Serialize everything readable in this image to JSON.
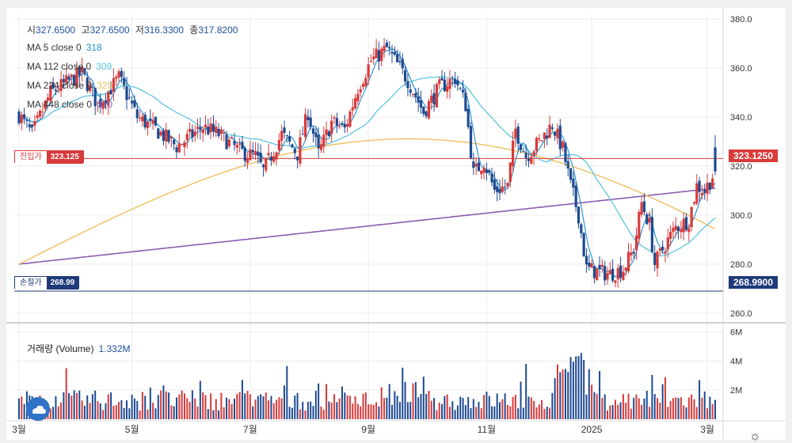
{
  "ohlc": [
    {
      "key": "시",
      "value": "327.6500"
    },
    {
      "key": "고",
      "value": "327.6500"
    },
    {
      "key": "저",
      "value": "316.3300"
    },
    {
      "key": "종",
      "value": "317.8200"
    }
  ],
  "moving_averages": [
    {
      "label": "MA 5 close 0",
      "value": "318",
      "color": "#1f8fd0"
    },
    {
      "label": "MA 112 close 0",
      "value": "309",
      "color": "#5bc6e0"
    },
    {
      "label": "MA 224 close 0",
      "value": "325",
      "color": "#f0c060"
    },
    {
      "label": "MA 448 close 0",
      "value": "310",
      "color": "#8a5cb0"
    }
  ],
  "entry_line": {
    "label": "진입가",
    "value": "323.125",
    "axis_value": "323.1250",
    "price": 323.125,
    "color": "#d93a3a"
  },
  "stop_line": {
    "label": "손절가",
    "value": "268.99",
    "axis_value": "268.9900",
    "price": 268.99,
    "color": "#1e3a78"
  },
  "volume_panel": {
    "title": "거래량 (Volume)",
    "value": "1.332M"
  },
  "colors": {
    "up": "#d93a3a",
    "down": "#1e4a90",
    "grid": "#ececec"
  },
  "icons": {
    "logo": "tradingview-cloud-icon",
    "settings": "gear-icon",
    "collapse": "chevron-up-icon"
  },
  "chart_data": {
    "type": "candlestick",
    "price_axis": {
      "range": [
        258,
        382
      ],
      "ticks": [
        "380.0",
        "360.0",
        "340.0",
        "320.0",
        "300.0",
        "280.0",
        "260.0"
      ]
    },
    "volume_axis": {
      "range": [
        0,
        6.3
      ],
      "unit": "M",
      "ticks": [
        "6M",
        "4M",
        "2M"
      ]
    },
    "x_labels": [
      "3월",
      "5월",
      "7월",
      "9월",
      "11월",
      "2025",
      "3월"
    ],
    "x_label_positions": [
      0,
      43,
      88,
      133,
      178,
      218,
      262
    ],
    "n_bars": 266,
    "price_path": [
      [
        0,
        341
      ],
      [
        5,
        333
      ],
      [
        12,
        350
      ],
      [
        24,
        358
      ],
      [
        30,
        345
      ],
      [
        38,
        356
      ],
      [
        45,
        340
      ],
      [
        52,
        335
      ],
      [
        60,
        328
      ],
      [
        70,
        336
      ],
      [
        76,
        333
      ],
      [
        84,
        326
      ],
      [
        90,
        324
      ],
      [
        93,
        318
      ],
      [
        100,
        333
      ],
      [
        106,
        325
      ],
      [
        110,
        342
      ],
      [
        114,
        325
      ],
      [
        119,
        338
      ],
      [
        124,
        335
      ],
      [
        129,
        352
      ],
      [
        134,
        363
      ],
      [
        140,
        368
      ],
      [
        148,
        355
      ],
      [
        154,
        342
      ],
      [
        160,
        352
      ],
      [
        166,
        356
      ],
      [
        170,
        345
      ],
      [
        173,
        317
      ],
      [
        177,
        322
      ],
      [
        181,
        310
      ],
      [
        186,
        312
      ],
      [
        189,
        335
      ],
      [
        193,
        324
      ],
      [
        198,
        330
      ],
      [
        203,
        337
      ],
      [
        207,
        327
      ],
      [
        210,
        312
      ],
      [
        213,
        300
      ],
      [
        216,
        278
      ],
      [
        220,
        277
      ],
      [
        225,
        276
      ],
      [
        230,
        278
      ],
      [
        234,
        286
      ],
      [
        237,
        305
      ],
      [
        240,
        296
      ],
      [
        242,
        280
      ],
      [
        246,
        288
      ],
      [
        250,
        295
      ],
      [
        255,
        298
      ],
      [
        258,
        312
      ],
      [
        261,
        310
      ],
      [
        264,
        316
      ],
      [
        265,
        326
      ]
    ],
    "entry_price": 323.125,
    "stop_price": 268.99,
    "last_candle": {
      "open": 327.65,
      "high": 327.65,
      "low": 316.33,
      "close": 317.82
    }
  }
}
